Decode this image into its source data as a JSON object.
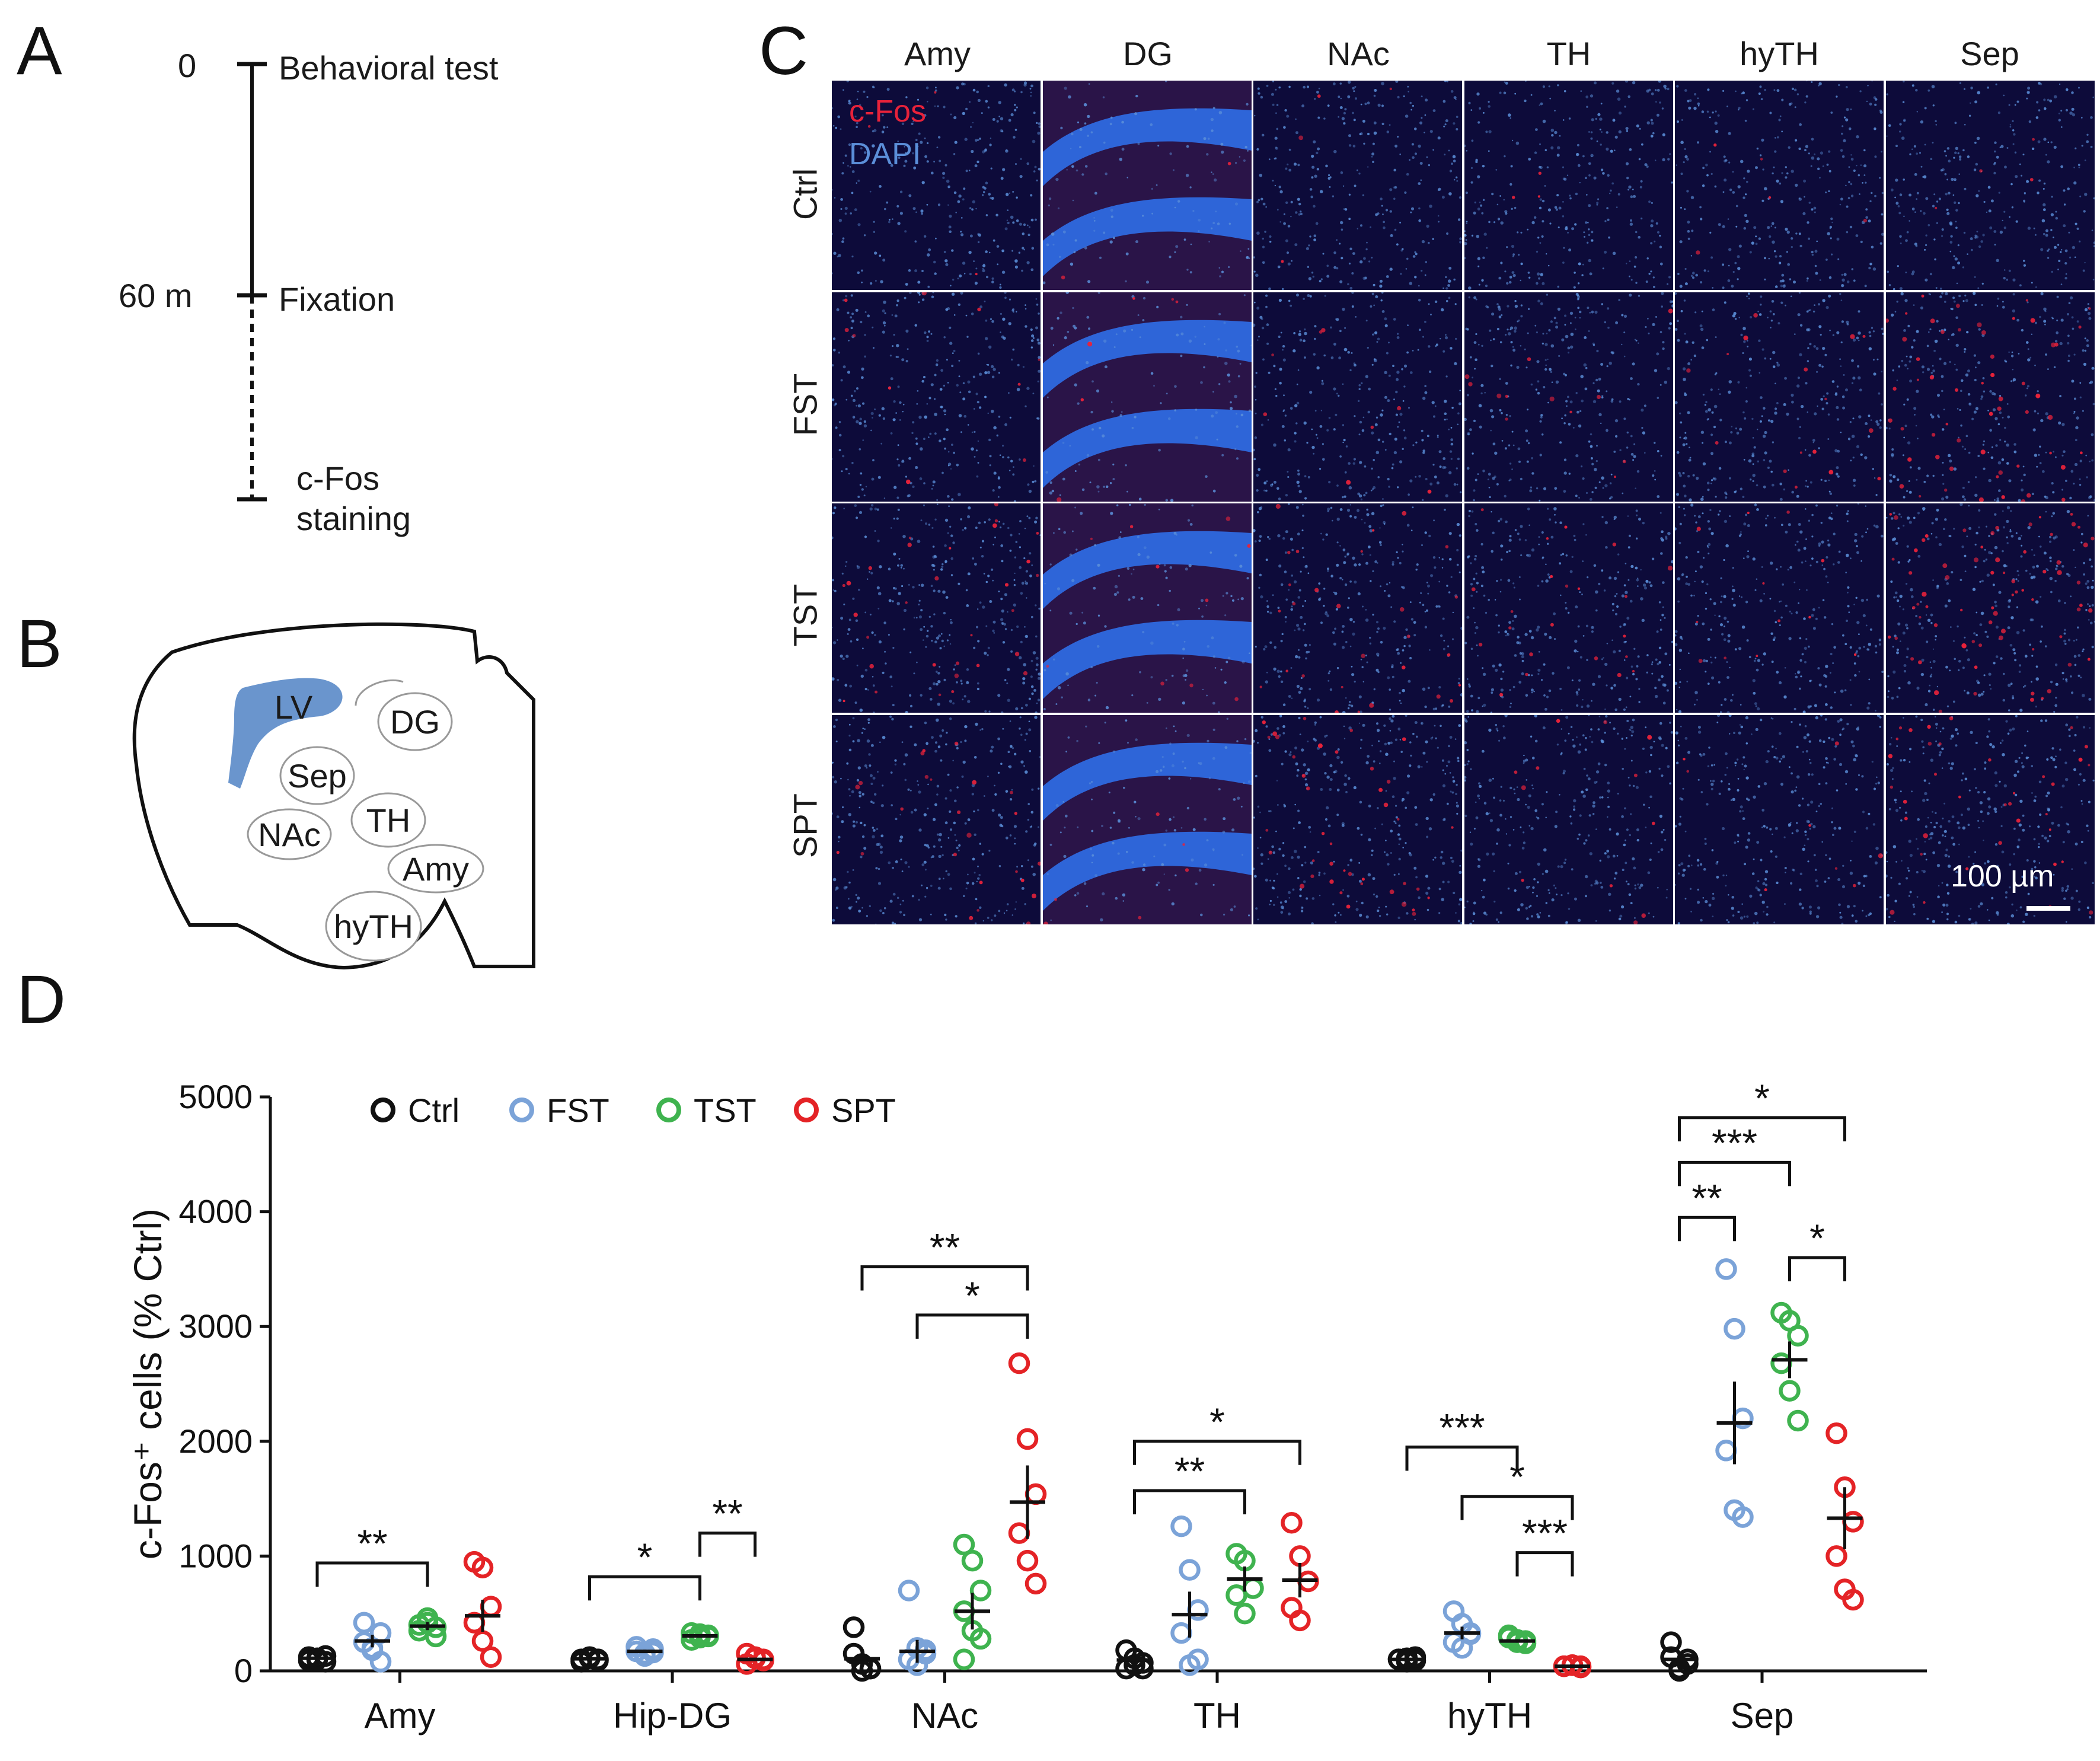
{
  "panels": {
    "a": "A",
    "b": "B",
    "c": "C",
    "d": "D"
  },
  "timeline": {
    "t0": "0",
    "t60": "60 m",
    "step1": "Behavioral test",
    "step2": "Fixation",
    "step3_line1": "c-Fos",
    "step3_line2": "staining"
  },
  "brain_regions": [
    "LV",
    "DG",
    "Sep",
    "NAc",
    "TH",
    "Amy",
    "hyTH"
  ],
  "micrographs": {
    "columns": [
      "Amy",
      "DG",
      "NAc",
      "TH",
      "hyTH",
      "Sep"
    ],
    "rows": [
      "Ctrl",
      "FST",
      "TST",
      "SPT"
    ],
    "legend_cfos": "c-Fos",
    "legend_dapi": "DAPI",
    "scale_bar": "100 µm",
    "colors": {
      "cfos": "#e8223a",
      "dapi": "#5b8fd9",
      "background": "#0d0b3a"
    }
  },
  "chart_data": {
    "type": "scatter",
    "ylabel": "c-Fos⁺ cells (% Ctrl)",
    "ylim": [
      0,
      5000
    ],
    "yticks": [
      "0",
      "1000",
      "2000",
      "3000",
      "4000",
      "5000"
    ],
    "categories": [
      "Amy",
      "Hip-DG",
      "NAc",
      "TH",
      "hyTH",
      "Sep"
    ],
    "legend": [
      "Ctrl",
      "FST",
      "TST",
      "SPT"
    ],
    "colors": {
      "Ctrl": "#111111",
      "FST": "#7ba3d8",
      "TST": "#3fb34f",
      "SPT": "#e42326"
    },
    "series": [
      {
        "name": "Ctrl",
        "points": [
          [
            90,
            110,
            80,
            120,
            100,
            130
          ],
          [
            100,
            120,
            90,
            80,
            110,
            100
          ],
          [
            380,
            0,
            20,
            150,
            60,
            20
          ],
          [
            180,
            50,
            70,
            20,
            110,
            20
          ],
          [
            100,
            110,
            90,
            100,
            80,
            120
          ],
          [
            250,
            0,
            60,
            120,
            20,
            100
          ]
        ],
        "means": [
          110,
          105,
          105,
          95,
          100,
          100
        ],
        "sems": [
          20,
          15,
          60,
          30,
          10,
          40
        ]
      },
      {
        "name": "FST",
        "points": [
          [
            420,
            180,
            80,
            250,
            200,
            330
          ],
          [
            170,
            130,
            190,
            210,
            150,
            160
          ],
          [
            700,
            200,
            150,
            100,
            50,
            180
          ],
          [
            1260,
            880,
            530,
            330,
            50,
            100
          ],
          [
            520,
            410,
            330,
            250,
            200,
            320
          ],
          [
            3500,
            2980,
            2200,
            1920,
            1400,
            1340
          ]
        ],
        "means": [
          260,
          170,
          170,
          490,
          330,
          2160
        ],
        "sems": [
          55,
          15,
          100,
          200,
          55,
          360
        ]
      },
      {
        "name": "TST",
        "points": [
          [
            400,
            460,
            300,
            350,
            420,
            380
          ],
          [
            330,
            290,
            310,
            270,
            320,
            300
          ],
          [
            1100,
            960,
            700,
            520,
            350,
            280,
            100
          ],
          [
            1020,
            960,
            720,
            660,
            500
          ],
          [
            310,
            270,
            240,
            290,
            250,
            260
          ],
          [
            3120,
            3050,
            2920,
            2680,
            2440,
            2180
          ]
        ],
        "means": [
          390,
          305,
          520,
          800,
          260,
          2710
        ],
        "sems": [
          35,
          10,
          160,
          110,
          15,
          160
        ]
      },
      {
        "name": "SPT",
        "points": [
          [
            950,
            900,
            560,
            420,
            260,
            120
          ],
          [
            150,
            120,
            90,
            60,
            110,
            100
          ],
          [
            2680,
            2020,
            1540,
            1200,
            960,
            760
          ],
          [
            1290,
            1000,
            780,
            550,
            440
          ],
          [
            40,
            50,
            30,
            40,
            50,
            40
          ],
          [
            2070,
            1600,
            1300,
            1000,
            710,
            620
          ]
        ],
        "means": [
          480,
          100,
          1470,
          790,
          40,
          1330
        ],
        "sems": [
          140,
          15,
          320,
          150,
          5,
          270
        ]
      }
    ],
    "significance": [
      {
        "category": "Amy",
        "from": "Ctrl",
        "to": "TST",
        "label": "**",
        "y": 940
      },
      {
        "category": "Hip-DG",
        "from": "Ctrl",
        "to": "TST",
        "label": "*",
        "y": 820
      },
      {
        "category": "Hip-DG",
        "from": "TST",
        "to": "SPT",
        "label": "**",
        "y": 1200
      },
      {
        "category": "NAc",
        "from": "Ctrl",
        "to": "SPT",
        "label": "**",
        "y": 3520
      },
      {
        "category": "NAc",
        "from": "FST",
        "to": "SPT",
        "label": "*",
        "y": 3100
      },
      {
        "category": "TH",
        "from": "Ctrl",
        "to": "SPT",
        "label": "*",
        "y": 2000
      },
      {
        "category": "TH",
        "from": "Ctrl",
        "to": "TST",
        "label": "**",
        "y": 1570
      },
      {
        "category": "hyTH",
        "from": "Ctrl",
        "to": "TST",
        "label": "***",
        "y": 1950
      },
      {
        "category": "hyTH",
        "from": "FST",
        "to": "SPT",
        "label": "*",
        "y": 1520
      },
      {
        "category": "hyTH",
        "from": "TST",
        "to": "SPT",
        "label": "***",
        "y": 1030
      },
      {
        "category": "Sep",
        "from": "Ctrl",
        "to": "SPT",
        "label": "*",
        "y": 4820
      },
      {
        "category": "Sep",
        "from": "Ctrl",
        "to": "TST",
        "label": "***",
        "y": 4430
      },
      {
        "category": "Sep",
        "from": "Ctrl",
        "to": "FST",
        "label": "**",
        "y": 3950
      },
      {
        "category": "Sep",
        "from": "TST",
        "to": "SPT",
        "label": "*",
        "y": 3600
      }
    ]
  }
}
